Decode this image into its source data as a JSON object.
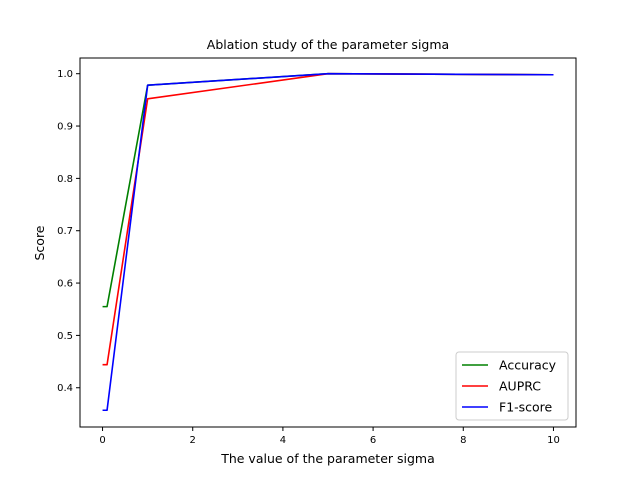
{
  "chart_data": {
    "type": "line",
    "title": "Ablation study of the parameter sigma",
    "xlabel": "The value of the parameter sigma",
    "ylabel": "Score",
    "x": [
      0,
      0.1,
      1,
      5,
      10
    ],
    "xlim": [
      -0.5,
      10.5
    ],
    "ylim": [
      0.325,
      1.03
    ],
    "xticks": [
      0,
      2,
      4,
      6,
      8,
      10
    ],
    "yticks": [
      0.4,
      0.5,
      0.6,
      0.7,
      0.8,
      0.9,
      1.0
    ],
    "xtick_labels": [
      "0",
      "2",
      "4",
      "6",
      "8",
      "10"
    ],
    "ytick_labels": [
      "0.4",
      "0.5",
      "0.6",
      "0.7",
      "0.8",
      "0.9",
      "1.0"
    ],
    "grid": false,
    "legend_position": "lower-right",
    "series": [
      {
        "name": "Accuracy",
        "color": "#008000",
        "values": [
          0.555,
          0.555,
          0.978,
          1.0,
          0.998
        ]
      },
      {
        "name": "AUPRC",
        "color": "#ff0000",
        "values": [
          0.444,
          0.444,
          0.952,
          1.0,
          0.998
        ]
      },
      {
        "name": "F1-score",
        "color": "#0000ff",
        "values": [
          0.357,
          0.357,
          0.978,
          1.0,
          0.998
        ]
      }
    ]
  }
}
